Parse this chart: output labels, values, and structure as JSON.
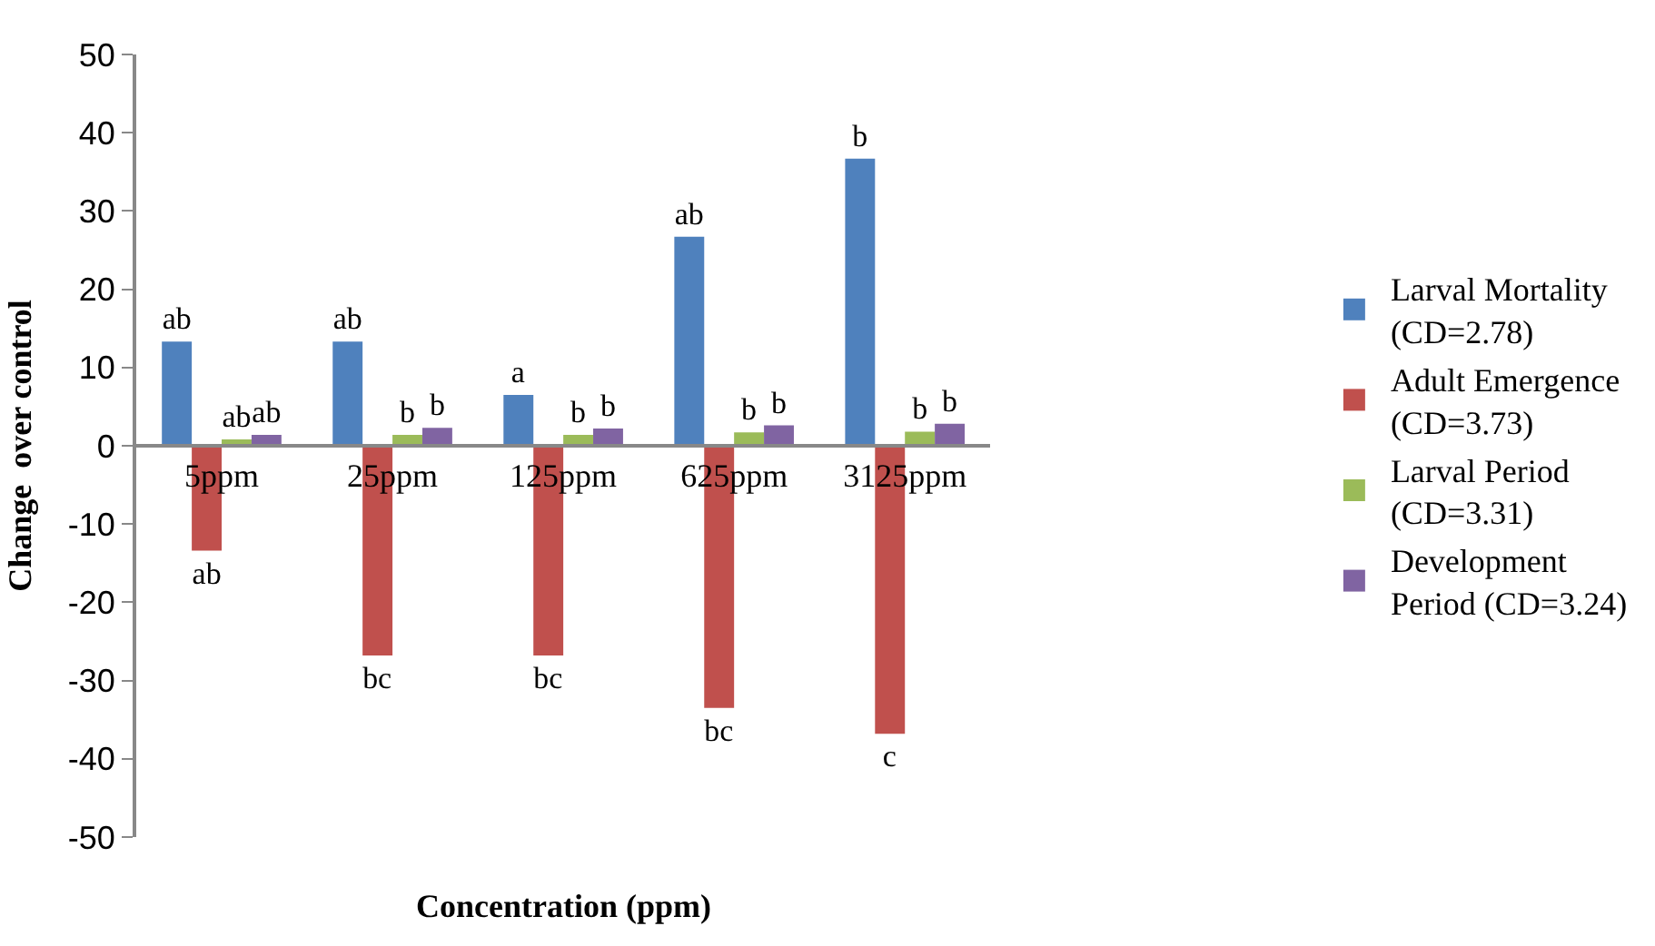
{
  "chart_data": {
    "type": "bar",
    "xlabel": "Concentration (ppm)",
    "ylabel": "Change  over control",
    "categories": [
      "5ppm",
      "25ppm",
      "125ppm",
      "625ppm",
      "3125ppm"
    ],
    "series": [
      {
        "name": "Larval Mortality (CD=2.78)",
        "color": "#4f81bd",
        "values": [
          13.3,
          13.3,
          6.5,
          26.7,
          36.7
        ],
        "value_labels": [
          "ab",
          "ab",
          "a",
          "ab",
          "b"
        ]
      },
      {
        "name": "Adult Emergence (CD=3.73)",
        "color": "#c0504d",
        "values": [
          -13.4,
          -26.8,
          -26.8,
          -33.5,
          -36.8
        ],
        "value_labels": [
          "ab",
          "bc",
          "bc",
          "bc",
          "c"
        ]
      },
      {
        "name": "Larval Period (CD=3.31)",
        "color": "#9bbb59",
        "values": [
          0.8,
          1.4,
          1.4,
          1.7,
          1.8
        ],
        "value_labels": [
          "ab",
          "b",
          "b",
          "b",
          "b"
        ]
      },
      {
        "name": "Development Period (CD=3.24)",
        "color": "#8064a2",
        "values": [
          1.4,
          2.3,
          2.2,
          2.6,
          2.8
        ],
        "value_labels": [
          "ab",
          "b",
          "b",
          "b",
          "b"
        ]
      }
    ],
    "ylim": [
      -50,
      50
    ],
    "yticks": [
      -50,
      -40,
      -30,
      -20,
      -10,
      0,
      10,
      20,
      30,
      40,
      50
    ],
    "legend": "right"
  }
}
